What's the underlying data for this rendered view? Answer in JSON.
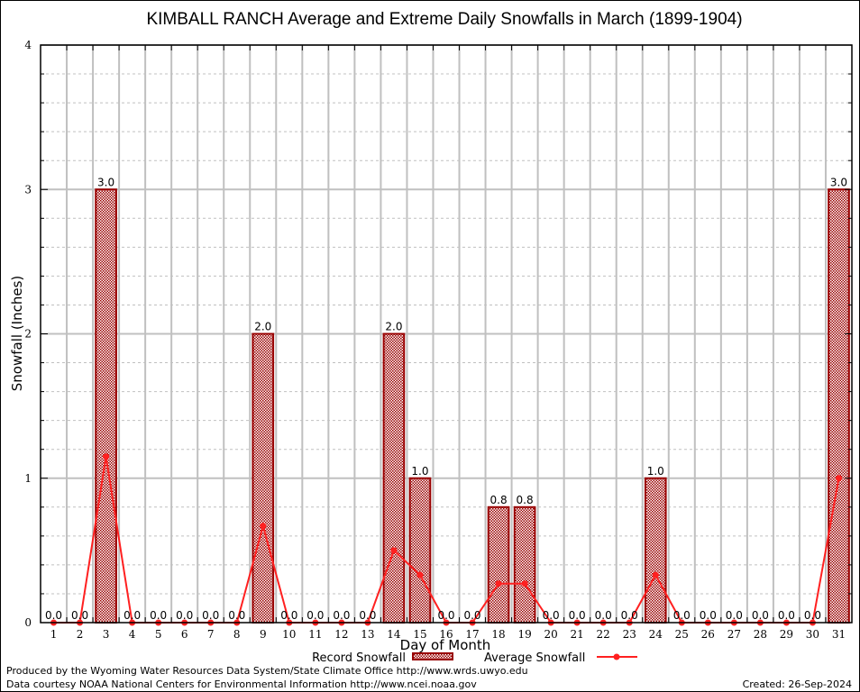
{
  "chart_data": {
    "type": "bar",
    "title": "KIMBALL RANCH Average and Extreme Daily Snowfalls in March (1899-1904)",
    "xlabel": "Day of Month",
    "ylabel": "Snowfall (Inches)",
    "ylim": [
      0,
      4
    ],
    "yticks": [
      "0",
      "1",
      "2",
      "3",
      "4"
    ],
    "grid": true,
    "legend_position": "bottom-center",
    "categories": [
      "1",
      "2",
      "3",
      "4",
      "5",
      "6",
      "7",
      "8",
      "9",
      "10",
      "11",
      "12",
      "13",
      "14",
      "15",
      "16",
      "17",
      "18",
      "19",
      "20",
      "21",
      "22",
      "23",
      "24",
      "25",
      "26",
      "27",
      "28",
      "29",
      "30",
      "31"
    ],
    "series": [
      {
        "name": "Record Snowfall",
        "type": "bar",
        "color": "#990000",
        "values": [
          0.0,
          0.0,
          3.0,
          0.0,
          0.0,
          0.0,
          0.0,
          0.0,
          2.0,
          0.0,
          0.0,
          0.0,
          0.0,
          2.0,
          1.0,
          0.0,
          0.0,
          0.8,
          0.8,
          0.0,
          0.0,
          0.0,
          0.0,
          1.0,
          0.0,
          0.0,
          0.0,
          0.0,
          0.0,
          0.0,
          3.0
        ],
        "labels": [
          "0.0",
          "0.0",
          "3.0",
          "0.0",
          "0.0",
          "0.0",
          "0.0",
          "0.0",
          "2.0",
          "0.0",
          "0.0",
          "0.0",
          "0.0",
          "2.0",
          "1.0",
          "0.0",
          "0.0",
          "0.8",
          "0.8",
          "0.0",
          "0.0",
          "0.0",
          "0.0",
          "1.0",
          "0.0",
          "0.0",
          "0.0",
          "0.0",
          "0.0",
          "0.0",
          "3.0"
        ]
      },
      {
        "name": "Average Snowfall",
        "type": "line",
        "color": "#ff2020",
        "values": [
          0,
          0,
          1.15,
          0,
          0,
          0,
          0,
          0,
          0.67,
          0,
          0,
          0,
          0,
          0.5,
          0.33,
          0,
          0,
          0.27,
          0.27,
          0,
          0,
          0,
          0,
          0.33,
          0,
          0,
          0,
          0,
          0,
          0,
          1.0
        ]
      }
    ]
  },
  "footer": {
    "produced_by": "Produced by the Wyoming Water Resources Data System/State Climate Office http://www.wrds.uwyo.edu",
    "data_courtesy": "Data courtesy NOAA National Centers for Environmental Information http://www.ncei.noaa.gov",
    "created": "Created: 26-Sep-2024"
  }
}
